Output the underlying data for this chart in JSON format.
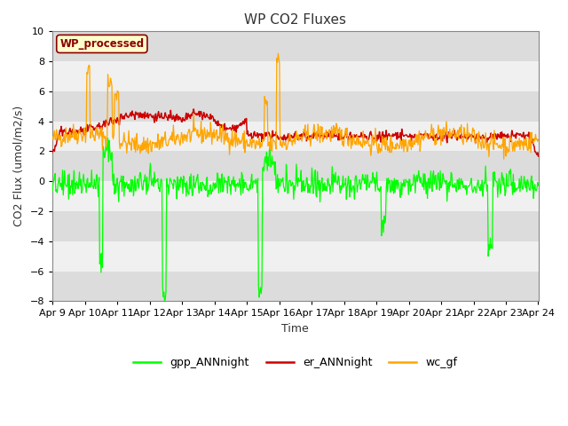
{
  "title": "WP CO2 Fluxes",
  "xlabel": "Time",
  "ylabel": "CO2 Flux (umol/m2/s)",
  "ylim": [
    -8,
    10
  ],
  "yticks": [
    -8,
    -6,
    -4,
    -2,
    0,
    2,
    4,
    6,
    8,
    10
  ],
  "xlim_start": 9,
  "xlim_end": 24,
  "xtick_labels": [
    "Apr 9",
    "Apr 10",
    "Apr 11",
    "Apr 12",
    "Apr 13",
    "Apr 14",
    "Apr 15",
    "Apr 16",
    "Apr 17",
    "Apr 18",
    "Apr 19",
    "Apr 20",
    "Apr 21",
    "Apr 22",
    "Apr 23",
    "Apr 24"
  ],
  "color_gpp": "#00FF00",
  "color_er": "#CC0000",
  "color_wc": "#FFA500",
  "legend_label_gpp": "gpp_ANNnight",
  "legend_label_er": "er_ANNnight",
  "legend_label_wc": "wc_gf",
  "watermark_text": "WP_processed",
  "watermark_color": "#8B0000",
  "watermark_bg": "#FFFFCC",
  "bg_color": "#FFFFFF",
  "plot_bg_light": "#F0F0F0",
  "plot_bg_dark": "#DCDCDC",
  "seed": 42,
  "n_points": 720
}
